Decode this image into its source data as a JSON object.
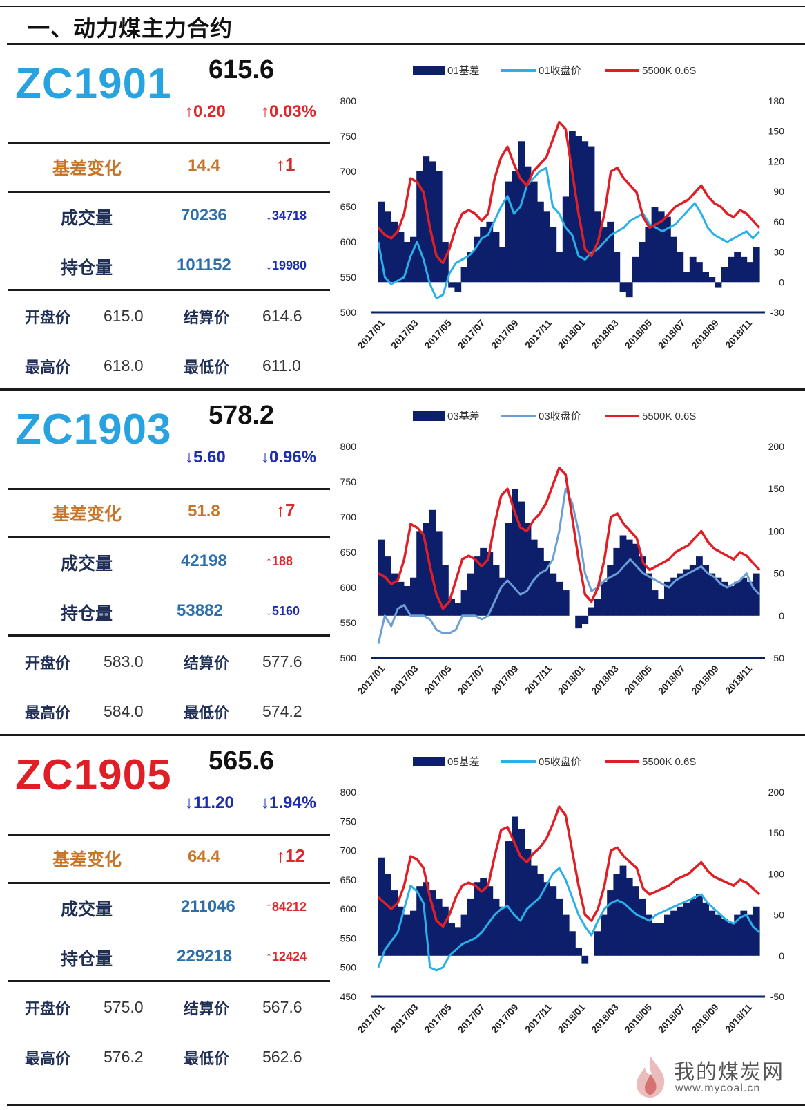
{
  "page_title": "一、动力煤主力合约",
  "labels": {
    "basis_change": "基差变化",
    "volume": "成交量",
    "open_interest": "持仓量",
    "open": "开盘价",
    "settle": "结算价",
    "high": "最高价",
    "low": "最低价"
  },
  "colors": {
    "code_blue": "#29a3df",
    "code_red": "#e01e25",
    "bar_navy": "#0d1f6b",
    "line_lightblue": "#2ab0e8",
    "line_midblue": "#6a9fd6",
    "line_red": "#e01e25"
  },
  "contracts": [
    {
      "code": "ZC1901",
      "code_color": "#29a3df",
      "price": "615.6",
      "change": "↑0.20",
      "change_pct": "↑0.03%",
      "dir": "up",
      "basis": "14.4",
      "basis_delta": "↑1",
      "basis_dir": "up",
      "volume": "70236",
      "volume_delta": "↓34718",
      "volume_dir": "down",
      "oi": "101152",
      "oi_delta": "↓19980",
      "oi_dir": "down",
      "open": "615.0",
      "settle": "614.6",
      "high": "618.0",
      "low": "611.0"
    },
    {
      "code": "ZC1903",
      "code_color": "#29a3df",
      "price": "578.2",
      "change": "↓5.60",
      "change_pct": "↓0.96%",
      "dir": "down",
      "basis": "51.8",
      "basis_delta": "↑7",
      "basis_dir": "up",
      "volume": "42198",
      "volume_delta": "↑188",
      "volume_dir": "up",
      "oi": "53882",
      "oi_delta": "↓5160",
      "oi_dir": "down",
      "open": "583.0",
      "settle": "577.6",
      "high": "584.0",
      "low": "574.2"
    },
    {
      "code": "ZC1905",
      "code_color": "#e01e25",
      "price": "565.6",
      "change": "↓11.20",
      "change_pct": "↓1.94%",
      "dir": "down",
      "basis": "64.4",
      "basis_delta": "↑12",
      "basis_dir": "up",
      "volume": "211046",
      "volume_delta": "↑84212",
      "volume_dir": "up",
      "oi": "229218",
      "oi_delta": "↑12424",
      "oi_dir": "up",
      "open": "575.0",
      "settle": "567.6",
      "high": "576.2",
      "low": "562.6"
    }
  ],
  "chart_data": [
    {
      "type": "line",
      "legend": [
        "01基差",
        "01收盘价",
        "5500K 0.6S"
      ],
      "x_ticks": [
        "2017/01",
        "2017/03",
        "2017/05",
        "2017/07",
        "2017/09",
        "2017/11",
        "2018/01",
        "2018/03",
        "2018/05",
        "2018/07",
        "2018/09",
        "2018/11"
      ],
      "y_left_ticks": [
        800,
        750,
        700,
        650,
        600,
        550,
        500
      ],
      "y_right_ticks": [
        180,
        150,
        120,
        90,
        60,
        30,
        0,
        -30
      ],
      "y_left_range": [
        500,
        800
      ],
      "y_right_range": [
        -30,
        180
      ],
      "series": [
        {
          "name": "01基差",
          "kind": "bar",
          "axis": "right",
          "color": "#0d1f6b",
          "values": [
            80,
            70,
            60,
            50,
            40,
            45,
            110,
            125,
            120,
            110,
            40,
            -5,
            -10,
            15,
            30,
            45,
            55,
            60,
            50,
            35,
            100,
            110,
            140,
            115,
            100,
            80,
            70,
            55,
            30,
            85,
            150,
            145,
            140,
            135,
            70,
            55,
            60,
            30,
            -10,
            -15,
            25,
            40,
            55,
            75,
            70,
            65,
            45,
            30,
            10,
            25,
            20,
            10,
            5,
            -5,
            15,
            25,
            30,
            25,
            20,
            35
          ]
        },
        {
          "name": "01收盘价",
          "kind": "line",
          "axis": "left",
          "color": "#2ab0e8",
          "values": [
            600,
            550,
            540,
            545,
            550,
            580,
            600,
            575,
            540,
            520,
            525,
            555,
            570,
            575,
            580,
            590,
            605,
            610,
            630,
            650,
            665,
            640,
            650,
            680,
            690,
            700,
            705,
            650,
            640,
            620,
            610,
            580,
            575,
            585,
            590,
            600,
            610,
            615,
            620,
            630,
            635,
            640,
            625,
            620,
            615,
            620,
            625,
            635,
            645,
            655,
            640,
            620,
            610,
            605,
            600,
            605,
            610,
            615,
            605,
            615
          ]
        },
        {
          "name": "5500K 0.6S",
          "kind": "line",
          "axis": "left",
          "color": "#e01e25",
          "values": [
            620,
            610,
            605,
            615,
            640,
            690,
            685,
            670,
            620,
            580,
            570,
            590,
            620,
            640,
            645,
            640,
            630,
            640,
            690,
            720,
            735,
            710,
            690,
            680,
            700,
            710,
            720,
            745,
            770,
            760,
            700,
            640,
            590,
            580,
            600,
            640,
            700,
            705,
            690,
            680,
            670,
            635,
            620,
            625,
            630,
            640,
            650,
            655,
            660,
            670,
            680,
            665,
            655,
            650,
            640,
            635,
            645,
            640,
            630,
            620
          ]
        }
      ]
    },
    {
      "type": "line",
      "legend": [
        "03基差",
        "03收盘价",
        "5500K 0.6S"
      ],
      "x_ticks": [
        "2017/01",
        "2017/03",
        "2017/05",
        "2017/07",
        "2017/09",
        "2017/11",
        "2018/01",
        "2018/03",
        "2018/05",
        "2018/07",
        "2018/09",
        "2018/11"
      ],
      "y_left_ticks": [
        800,
        750,
        700,
        650,
        600,
        550,
        500
      ],
      "y_right_ticks": [
        200,
        150,
        100,
        50,
        0,
        -50
      ],
      "y_left_range": [
        500,
        800
      ],
      "y_right_range": [
        -50,
        200
      ],
      "series": [
        {
          "name": "03基差",
          "kind": "bar",
          "axis": "right",
          "color": "#0d1f6b",
          "values": [
            90,
            70,
            50,
            40,
            35,
            45,
            100,
            110,
            125,
            100,
            60,
            20,
            15,
            30,
            50,
            70,
            80,
            75,
            60,
            45,
            110,
            150,
            135,
            110,
            90,
            80,
            65,
            50,
            40,
            30,
            0,
            -15,
            -10,
            10,
            20,
            40,
            60,
            80,
            95,
            90,
            85,
            70,
            50,
            30,
            20,
            40,
            45,
            50,
            55,
            60,
            70,
            60,
            50,
            45,
            40,
            35,
            40,
            45,
            40,
            50
          ]
        },
        {
          "name": "03收盘价",
          "kind": "line",
          "axis": "left",
          "color": "#6a9fd6",
          "values": [
            520,
            560,
            545,
            570,
            575,
            560,
            560,
            560,
            555,
            540,
            535,
            535,
            540,
            560,
            560,
            560,
            555,
            560,
            580,
            600,
            610,
            600,
            590,
            595,
            610,
            620,
            625,
            640,
            680,
            740,
            720,
            680,
            620,
            595,
            600,
            610,
            615,
            620,
            630,
            640,
            630,
            620,
            615,
            610,
            605,
            600,
            610,
            615,
            620,
            625,
            630,
            620,
            615,
            605,
            600,
            605,
            610,
            620,
            600,
            590
          ]
        },
        {
          "name": "5500K 0.6S",
          "kind": "line",
          "axis": "left",
          "color": "#e01e25",
          "values": [
            620,
            615,
            605,
            610,
            640,
            690,
            685,
            675,
            630,
            590,
            570,
            580,
            610,
            640,
            645,
            640,
            630,
            640,
            690,
            730,
            740,
            710,
            685,
            680,
            695,
            705,
            720,
            745,
            770,
            760,
            700,
            640,
            590,
            580,
            600,
            640,
            700,
            705,
            690,
            680,
            670,
            635,
            625,
            630,
            635,
            640,
            650,
            655,
            660,
            670,
            680,
            665,
            655,
            650,
            645,
            640,
            650,
            645,
            635,
            625
          ]
        }
      ]
    },
    {
      "type": "line",
      "legend": [
        "05基差",
        "05收盘价",
        "5500K 0.6S"
      ],
      "x_ticks": [
        "2017/01",
        "2017/03",
        "2017/05",
        "2017/07",
        "2017/09",
        "2017/11",
        "2018/01",
        "2018/03",
        "2018/05",
        "2018/07",
        "2018/09",
        "2018/11"
      ],
      "y_left_ticks": [
        800,
        750,
        700,
        650,
        600,
        550,
        500,
        450
      ],
      "y_right_ticks": [
        200,
        150,
        100,
        50,
        0,
        -50
      ],
      "y_left_range": [
        450,
        800
      ],
      "y_right_range": [
        -50,
        200
      ],
      "series": [
        {
          "name": "05基差",
          "kind": "bar",
          "axis": "right",
          "color": "#0d1f6b",
          "values": [
            120,
            100,
            80,
            60,
            50,
            55,
            85,
            90,
            80,
            70,
            60,
            40,
            35,
            50,
            70,
            90,
            95,
            85,
            70,
            60,
            140,
            170,
            155,
            130,
            110,
            100,
            90,
            85,
            70,
            50,
            30,
            10,
            -10,
            0,
            30,
            50,
            80,
            100,
            110,
            95,
            85,
            70,
            50,
            40,
            40,
            50,
            55,
            60,
            65,
            70,
            75,
            65,
            55,
            50,
            45,
            40,
            50,
            55,
            50,
            60
          ]
        },
        {
          "name": "05收盘价",
          "kind": "line",
          "axis": "left",
          "color": "#2ab0e8",
          "values": [
            500,
            530,
            545,
            560,
            600,
            640,
            630,
            610,
            500,
            495,
            500,
            520,
            530,
            540,
            545,
            550,
            560,
            575,
            590,
            600,
            605,
            590,
            580,
            600,
            610,
            620,
            640,
            660,
            670,
            650,
            620,
            590,
            570,
            555,
            580,
            600,
            610,
            615,
            610,
            600,
            590,
            585,
            580,
            590,
            595,
            600,
            605,
            610,
            615,
            620,
            625,
            610,
            600,
            590,
            580,
            575,
            585,
            590,
            570,
            560
          ]
        },
        {
          "name": "5500K 0.6S",
          "kind": "line",
          "axis": "left",
          "color": "#e01e25",
          "values": [
            620,
            610,
            600,
            610,
            640,
            690,
            685,
            670,
            620,
            580,
            570,
            590,
            620,
            640,
            645,
            640,
            630,
            640,
            690,
            735,
            740,
            715,
            690,
            680,
            695,
            705,
            720,
            745,
            775,
            760,
            700,
            640,
            590,
            580,
            600,
            640,
            700,
            705,
            690,
            680,
            670,
            635,
            625,
            630,
            635,
            640,
            650,
            655,
            660,
            670,
            680,
            665,
            655,
            650,
            645,
            640,
            650,
            645,
            635,
            625
          ]
        }
      ]
    }
  ],
  "watermark": {
    "cn": "我的煤炭网",
    "url": "www.mycoal.cn"
  }
}
